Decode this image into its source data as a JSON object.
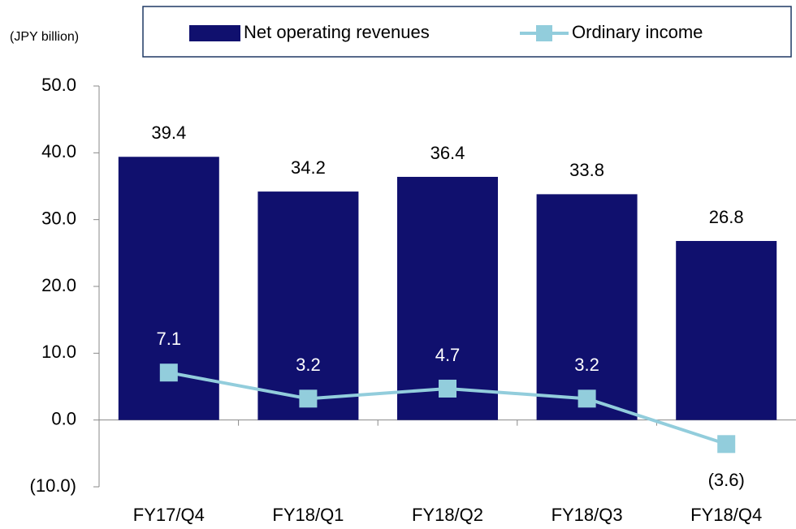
{
  "chart_data": {
    "type": "bar_line",
    "y_label": "(JPY billion)",
    "categories": [
      "FY17/Q4",
      "FY18/Q1",
      "FY18/Q2",
      "FY18/Q3",
      "FY18/Q4"
    ],
    "series": [
      {
        "name": "Net operating revenues",
        "type": "bar",
        "color": "#10106e",
        "values": [
          39.4,
          34.2,
          36.4,
          33.8,
          26.8
        ]
      },
      {
        "name": "Ordinary income",
        "type": "line",
        "color": "#92cddc",
        "values": [
          7.1,
          3.2,
          4.7,
          3.2,
          -3.6
        ],
        "value_labels": [
          "7.1",
          "3.2",
          "4.7",
          "3.2",
          "(3.6)"
        ]
      }
    ],
    "ylim": [
      -10,
      50
    ],
    "yticks": [
      {
        "value": -10,
        "label": "(10.0)"
      },
      {
        "value": 0,
        "label": "0.0"
      },
      {
        "value": 10,
        "label": "10.0"
      },
      {
        "value": 20,
        "label": "20.0"
      },
      {
        "value": 30,
        "label": "30.0"
      },
      {
        "value": 40,
        "label": "40.0"
      },
      {
        "value": 50,
        "label": "50.0"
      }
    ],
    "grid": false
  }
}
